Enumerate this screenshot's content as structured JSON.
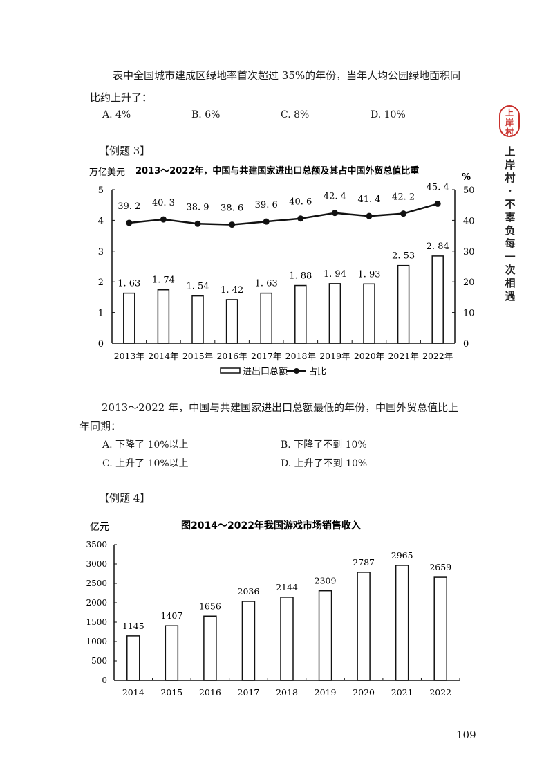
{
  "question_prev": {
    "line1": "表中全国城市建成区绿地率首次超过 35%的年份，当年人均公园绿地面积同",
    "line2": "比约上升了：",
    "options": [
      "A. 4%",
      "B. 6%",
      "C. 8%",
      "D. 10%"
    ]
  },
  "example3": {
    "label": "【例题 3】",
    "question_line1": "2013～2022 年，中国与共建国家进出口总额最低的年份，中国外贸总值比上",
    "question_line2": "年同期：",
    "options": [
      "A. 下降了 10%以上",
      "B. 下降了不到 10%",
      "C. 上升了 10%以上",
      "D. 上升了不到 10%"
    ]
  },
  "example4": {
    "label": "【例题 4】"
  },
  "sidebar": {
    "seal": "上岸村",
    "slogan": "上岸村·不辜负每一次相遇"
  },
  "page_number": "109",
  "chart_data": [
    {
      "type": "bar+line",
      "title": "2013～2022年，中国与共建国家进出口总额及其占中国外贸总值比重",
      "ylabel_left": "万亿美元",
      "ylabel_right": "%",
      "ylim_left": [
        0,
        5
      ],
      "ylim_right": [
        0,
        50
      ],
      "yticks_left": [
        0,
        1,
        2,
        3,
        4,
        5
      ],
      "yticks_right": [
        0,
        10,
        20,
        30,
        40,
        50
      ],
      "categories": [
        "2013年",
        "2014年",
        "2015年",
        "2016年",
        "2017年",
        "2018年",
        "2019年",
        "2020年",
        "2021年",
        "2022年"
      ],
      "series": [
        {
          "name": "进出口总额",
          "kind": "bar",
          "axis": "left",
          "values": [
            1.63,
            1.74,
            1.54,
            1.42,
            1.63,
            1.88,
            1.94,
            1.93,
            2.53,
            2.84
          ]
        },
        {
          "name": "占比",
          "kind": "line",
          "axis": "right",
          "values": [
            39.2,
            40.3,
            38.9,
            38.6,
            39.6,
            40.6,
            42.4,
            41.4,
            42.2,
            45.4
          ]
        }
      ],
      "legend_position": "bottom",
      "grid": false
    },
    {
      "type": "bar",
      "title": "图2014～2022年我国游戏市场销售收入",
      "ylabel": "亿元",
      "xlabel": "",
      "ylim": [
        0,
        3500
      ],
      "yticks": [
        0,
        500,
        1000,
        1500,
        2000,
        2500,
        3000,
        3500
      ],
      "categories": [
        "2014",
        "2015",
        "2016",
        "2017",
        "2018",
        "2019",
        "2020",
        "2021",
        "2022"
      ],
      "values": [
        1145,
        1407,
        1656,
        2036,
        2144,
        2309,
        2787,
        2965,
        2659
      ],
      "grid": false
    }
  ]
}
